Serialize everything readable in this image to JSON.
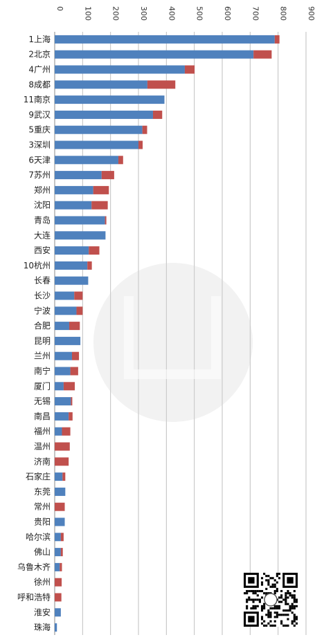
{
  "chart_data": {
    "type": "bar",
    "orientation": "horizontal",
    "stacked": true,
    "xlim": [
      0,
      900
    ],
    "x_ticks": [
      0,
      100,
      200,
      300,
      400,
      500,
      600,
      700,
      800,
      900
    ],
    "tick_label_position": "top",
    "grid": true,
    "categories": [
      "1上海",
      "2北京",
      "4广州",
      "8成都",
      "11南京",
      "9武汉",
      "5重庆",
      "3深圳",
      "6天津",
      "7苏州",
      "郑州",
      "沈阳",
      "青岛",
      "大连",
      "西安",
      "10杭州",
      "长春",
      "长沙",
      "宁波",
      "合肥",
      "昆明",
      "兰州",
      "南宁",
      "厦门",
      "无锡",
      "南昌",
      "福州",
      "温州",
      "济南",
      "石家庄",
      "东莞",
      "常州",
      "贵阳",
      "哈尔滨",
      "佛山",
      "乌鲁木齐",
      "徐州",
      "呼和浩特",
      "淮安",
      "珠海"
    ],
    "series": [
      {
        "values": [
          788,
          712,
          466,
          332,
          393,
          352,
          314,
          300,
          228,
          168,
          138,
          132,
          180,
          182,
          122,
          117,
          120,
          70,
          78,
          52,
          92,
          62,
          56,
          32,
          58,
          50,
          26,
          0,
          0,
          28,
          38,
          0,
          36,
          22,
          22,
          18,
          0,
          0,
          22,
          8
        ],
        "color": "#4f81bd"
      },
      {
        "values": [
          17,
          65,
          35,
          100,
          0,
          33,
          17,
          15,
          17,
          45,
          56,
          58,
          5,
          0,
          38,
          16,
          0,
          30,
          22,
          38,
          0,
          25,
          28,
          40,
          5,
          14,
          30,
          54,
          50,
          10,
          0,
          36,
          0,
          10,
          7,
          8,
          25,
          24,
          0,
          0
        ],
        "color": "#c0504d"
      }
    ]
  }
}
